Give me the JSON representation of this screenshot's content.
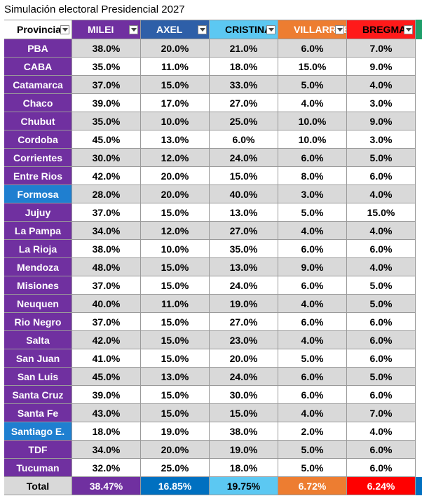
{
  "title": "Simulación electoral Presidencial 2027",
  "headers": [
    "Provincia",
    "MILEI",
    "AXEL",
    "CRISTINA",
    "VILLARRUE",
    "BREGMAN"
  ],
  "rows": [
    [
      "PBA",
      "38.0%",
      "20.0%",
      "21.0%",
      "6.0%",
      "7.0%"
    ],
    [
      "CABA",
      "35.0%",
      "11.0%",
      "18.0%",
      "15.0%",
      "9.0%"
    ],
    [
      "Catamarca",
      "37.0%",
      "15.0%",
      "33.0%",
      "5.0%",
      "4.0%"
    ],
    [
      "Chaco",
      "39.0%",
      "17.0%",
      "27.0%",
      "4.0%",
      "3.0%"
    ],
    [
      "Chubut",
      "35.0%",
      "10.0%",
      "25.0%",
      "10.0%",
      "9.0%"
    ],
    [
      "Cordoba",
      "45.0%",
      "13.0%",
      "6.0%",
      "10.0%",
      "3.0%"
    ],
    [
      "Corrientes",
      "30.0%",
      "12.0%",
      "24.0%",
      "6.0%",
      "5.0%"
    ],
    [
      "Entre Rios",
      "42.0%",
      "20.0%",
      "15.0%",
      "8.0%",
      "6.0%"
    ],
    [
      "Formosa",
      "28.0%",
      "20.0%",
      "40.0%",
      "3.0%",
      "4.0%"
    ],
    [
      "Jujuy",
      "37.0%",
      "15.0%",
      "13.0%",
      "5.0%",
      "15.0%"
    ],
    [
      "La Pampa",
      "34.0%",
      "12.0%",
      "27.0%",
      "4.0%",
      "4.0%"
    ],
    [
      "La Rioja",
      "38.0%",
      "10.0%",
      "35.0%",
      "6.0%",
      "6.0%"
    ],
    [
      "Mendoza",
      "48.0%",
      "15.0%",
      "13.0%",
      "9.0%",
      "4.0%"
    ],
    [
      "Misiones",
      "37.0%",
      "15.0%",
      "24.0%",
      "6.0%",
      "5.0%"
    ],
    [
      "Neuquen",
      "40.0%",
      "11.0%",
      "19.0%",
      "4.0%",
      "5.0%"
    ],
    [
      "Rio Negro",
      "37.0%",
      "15.0%",
      "27.0%",
      "6.0%",
      "6.0%"
    ],
    [
      "Salta",
      "42.0%",
      "15.0%",
      "23.0%",
      "4.0%",
      "6.0%"
    ],
    [
      "San Juan",
      "41.0%",
      "15.0%",
      "20.0%",
      "5.0%",
      "6.0%"
    ],
    [
      "San Luis",
      "45.0%",
      "13.0%",
      "24.0%",
      "6.0%",
      "5.0%"
    ],
    [
      "Santa Cruz",
      "39.0%",
      "15.0%",
      "30.0%",
      "6.0%",
      "6.0%"
    ],
    [
      "Santa Fe",
      "43.0%",
      "15.0%",
      "15.0%",
      "4.0%",
      "7.0%"
    ],
    [
      "Santiago E.",
      "18.0%",
      "19.0%",
      "38.0%",
      "2.0%",
      "4.0%"
    ],
    [
      "TDF",
      "34.0%",
      "20.0%",
      "19.0%",
      "5.0%",
      "6.0%"
    ],
    [
      "Tucuman",
      "32.0%",
      "25.0%",
      "18.0%",
      "5.0%",
      "6.0%"
    ]
  ],
  "total": [
    "Total",
    "38.47%",
    "16.85%",
    "19.75%",
    "6.72%",
    "6.24%"
  ]
}
